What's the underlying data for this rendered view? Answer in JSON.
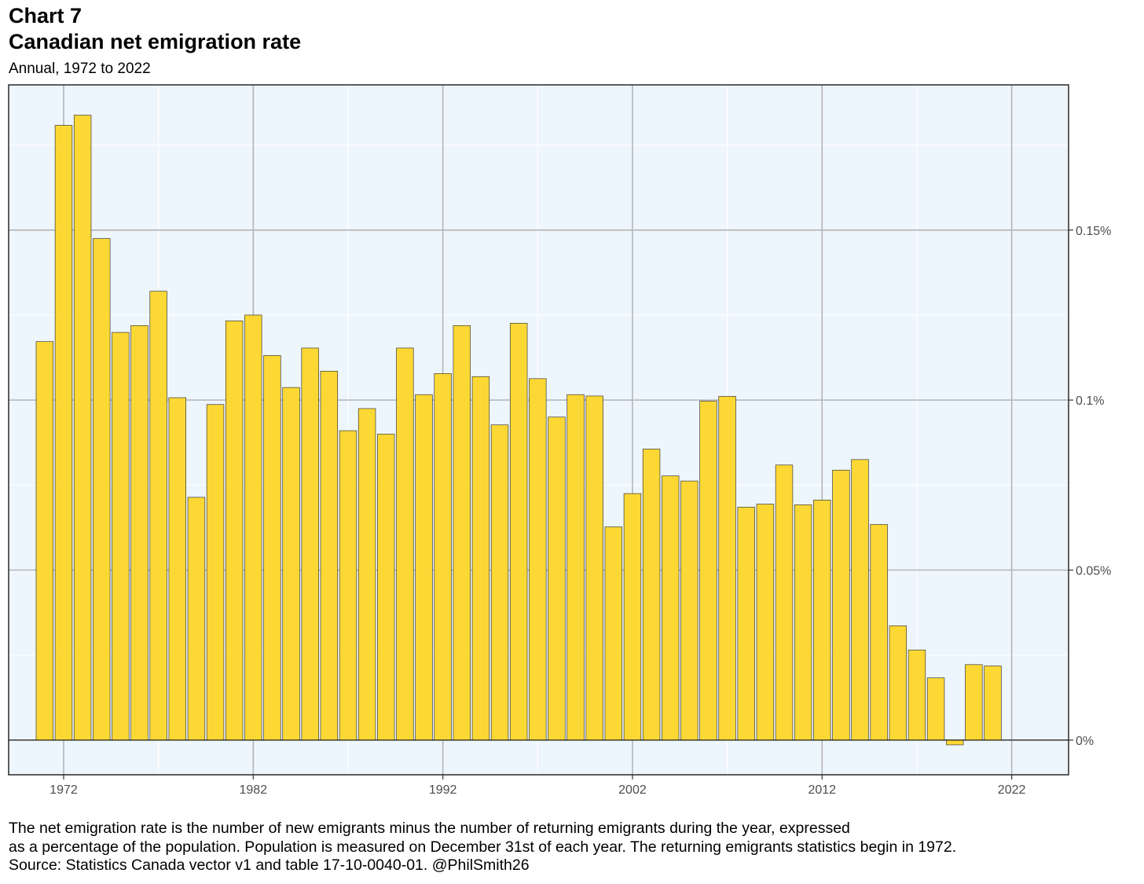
{
  "header": {
    "chart_label": "Chart 7",
    "title": "Canadian net emigration rate",
    "subtitle": "Annual, 1972 to 2022"
  },
  "notes": {
    "line1": "The net emigration rate is the number of new emigrants minus the number of returning emigrants during the year, expressed",
    "line2": "as a percentage of the population. Population is measured on December 31st of each year. The returning emigrants statistics begin in 1972.",
    "source": "Source: Statistics Canada vector v1 and table 17-10-0040-01. @PhilSmith26"
  },
  "chart_data": {
    "type": "bar",
    "title": "Canadian net emigration rate",
    "subtitle": "Annual, 1972 to 2022",
    "xlabel": "",
    "ylabel": "",
    "y_unit": "%",
    "y_axis_position": "right",
    "grid": true,
    "legend": "none",
    "x_range": [
      1969.1,
      2025
    ],
    "ylim": [
      -0.0102,
      0.1927
    ],
    "x_ticks": [
      1972,
      1982,
      1992,
      2002,
      2012,
      2022
    ],
    "y_ticks": [
      {
        "value": 0,
        "label": "0%"
      },
      {
        "value": 0.05,
        "label": "0.05%"
      },
      {
        "value": 0.1,
        "label": "0.1%"
      },
      {
        "value": 0.15,
        "label": "0.15%"
      }
    ],
    "colors": {
      "bar_fill": "#FCD835",
      "bar_stroke": "#3a3a3a",
      "panel_background": "#EEF6FD",
      "major_grid": "#b4b4b4",
      "minor_grid": "#ffffff",
      "zero_line": "#000000"
    },
    "categories": [
      1971,
      1972,
      1973,
      1974,
      1975,
      1976,
      1977,
      1978,
      1979,
      1980,
      1981,
      1982,
      1983,
      1984,
      1985,
      1986,
      1987,
      1988,
      1989,
      1990,
      1991,
      1992,
      1993,
      1994,
      1995,
      1996,
      1997,
      1998,
      1999,
      2000,
      2001,
      2002,
      2003,
      2004,
      2005,
      2006,
      2007,
      2008,
      2009,
      2010,
      2011,
      2012,
      2013,
      2014,
      2015,
      2016,
      2017,
      2018,
      2019,
      2020,
      2021
    ],
    "values": [
      0.1172,
      0.1808,
      0.1838,
      0.1475,
      0.1199,
      0.1219,
      0.132,
      0.1007,
      0.0714,
      0.0987,
      0.1233,
      0.125,
      0.1131,
      0.1037,
      0.1153,
      0.1085,
      0.091,
      0.0975,
      0.09,
      0.1153,
      0.1016,
      0.1078,
      0.1219,
      0.1069,
      0.0927,
      0.1226,
      0.1063,
      0.095,
      0.1016,
      0.1012,
      0.0627,
      0.0725,
      0.0856,
      0.0777,
      0.0762,
      0.0997,
      0.1011,
      0.0685,
      0.0694,
      0.0809,
      0.0692,
      0.0706,
      0.0794,
      0.0825,
      0.0634,
      0.0336,
      0.0265,
      0.0183,
      -0.0014,
      0.0222,
      0.0218
    ]
  }
}
